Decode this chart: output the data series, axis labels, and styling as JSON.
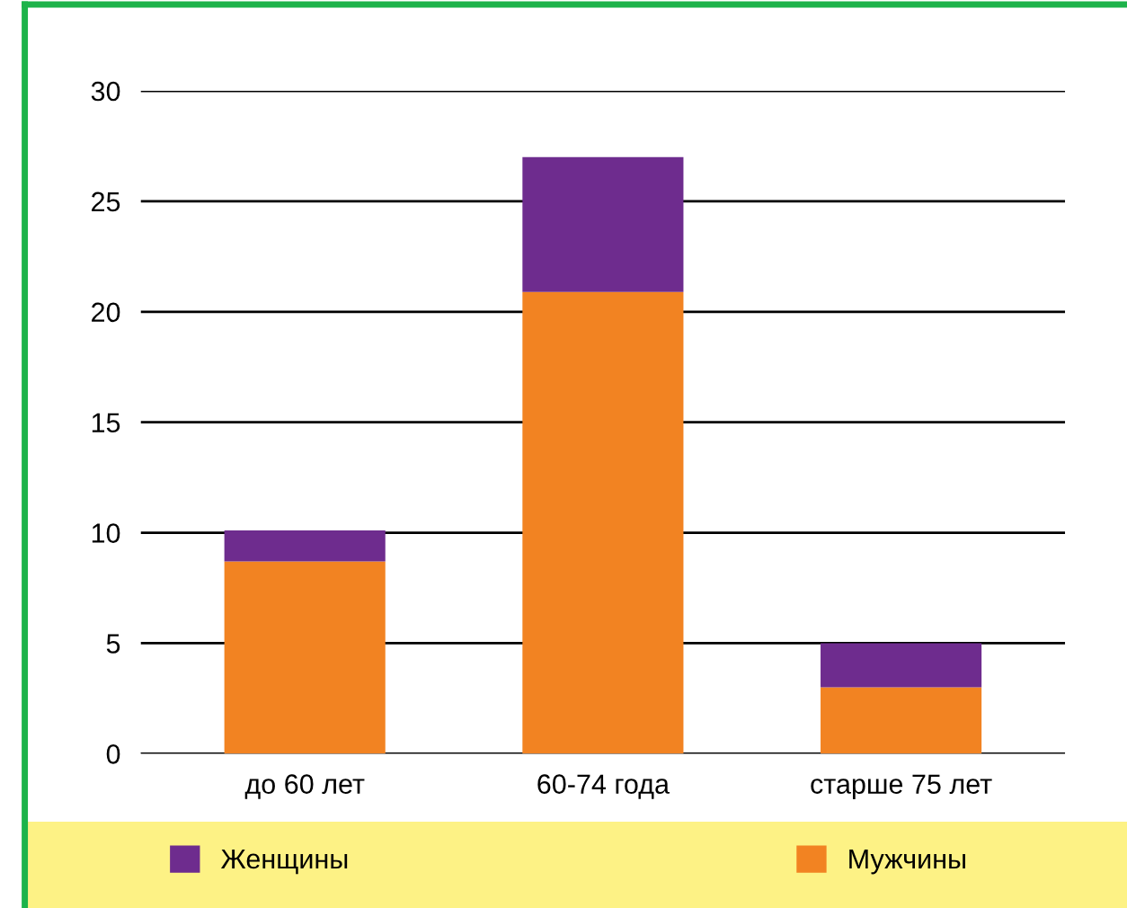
{
  "chart_data": {
    "type": "bar",
    "stacked": true,
    "categories": [
      "до 60 лет",
      "60-74 года",
      "старше 75 лет"
    ],
    "series": [
      {
        "name": "Мужчины",
        "color": "#f28322",
        "values": [
          8.7,
          20.9,
          3
        ]
      },
      {
        "name": "Женщины",
        "color": "#6e2c8e",
        "values": [
          1.4,
          6.1,
          2
        ]
      }
    ],
    "ylim": [
      0,
      30
    ],
    "yticks": [
      0,
      5,
      10,
      15,
      20,
      25,
      30
    ],
    "grid": "y",
    "legend": "bottom"
  }
}
